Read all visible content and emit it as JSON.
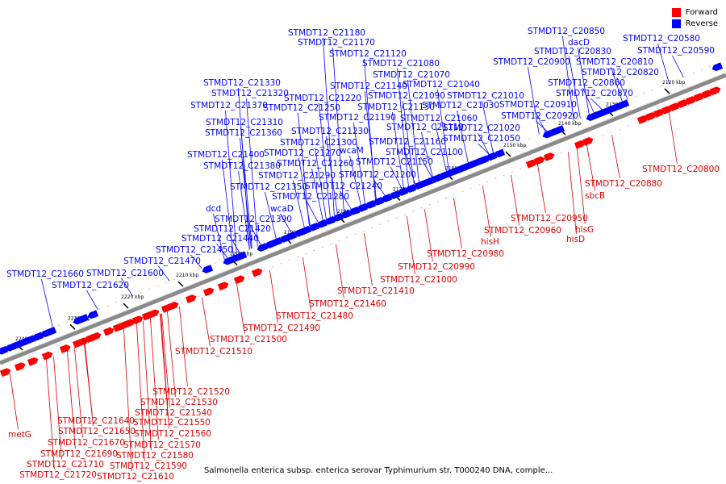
{
  "colors": {
    "forward": "#ff0000",
    "reverse": "#0000ff"
  },
  "legend": {
    "forward": "Forward",
    "reverse": "Reverse"
  },
  "caption": "Salmonella enterica subsp. enterica serovar Typhimurium str. T000240 DNA, comple...",
  "ticks": [
    "2120 kbp",
    "2130 kbp",
    "2140 kbp",
    "2150 kbp",
    "2160 kbp",
    "2170 kbp",
    "2180 kbp",
    "2190 kbp",
    "2200 kbp",
    "2210 kbp",
    "2220 kbp",
    "2230 kbp",
    "2240 kbp"
  ],
  "reverse_labels": [
    "STMDT12_C21180",
    "STMDT12_C21170",
    "STMDT12_C21120",
    "STMDT12_C21080",
    "STMDT12_C21070",
    "STMDT12_C21140",
    "STMDT12_C21040",
    "STMDT12_C21330",
    "STMDT12_C21320",
    "STMDT12_C21220",
    "STMDT12_C21090",
    "STMDT12_C21010",
    "STMDT12_C21370",
    "STMDT12_C21250",
    "STMDT12_C21130",
    "STMDT12_C21030",
    "STMDT12_C21190",
    "STMDT12_C21060",
    "STMDT12_C21310",
    "STMDT12_C21360",
    "STMDT12_C21230",
    "STMDT12_C21110",
    "STMDT12_C21020",
    "STMDT12_C21300",
    "STMDT12_C21160",
    "STMDT12_C21050",
    "STMDT12_C21400",
    "STMDT12_C21270",
    "wcaM",
    "STMDT12_C21100",
    "STMDT12_C21380",
    "STMDT12_C21260",
    "STMDT12_C21150",
    "STMDT12_C21290",
    "STMDT12_C21200",
    "STMDT12_C21350",
    "STMDT12_C21240",
    "STMDT12_C21280",
    "dcd",
    "wcaD",
    "STMDT12_C21390",
    "STMDT12_C21420",
    "STMDT12_C21440",
    "STMDT12_C21450",
    "STMDT12_C21470",
    "STMDT12_C21660",
    "STMDT12_C21600",
    "STMDT12_C21620",
    "STMDT12_C20850",
    "dacD",
    "STMDT12_C20830",
    "STMDT12_C20900",
    "STMDT12_C20810",
    "STMDT12_C20820",
    "STMDT12_C20860",
    "STMDT12_C20870",
    "STMDT12_C20910",
    "STMDT12_C20920",
    "STMDT12_C20580",
    "STMDT12_C20590"
  ],
  "forward_labels": [
    "STMDT12_C20800",
    "STMDT12_C20880",
    "sbcB",
    "STMDT12_C20950",
    "STMDT12_C20960",
    "hisG",
    "hisH",
    "hisD",
    "STMDT12_C20980",
    "STMDT12_C20990",
    "STMDT12_C21000",
    "STMDT12_C21410",
    "STMDT12_C21460",
    "STMDT12_C21480",
    "STMDT12_C21490",
    "STMDT12_C21500",
    "STMDT12_C21510",
    "STMDT12_C21520",
    "STMDT12_C21530",
    "STMDT12_C21540",
    "STMDT12_C21550",
    "STMDT12_C21560",
    "STMDT12_C21570",
    "STMDT12_C21580",
    "STMDT12_C21590",
    "STMDT12_C21610",
    "STMDT12_C21640",
    "STMDT12_C21650",
    "STMDT12_C21670",
    "STMDT12_C21690",
    "STMDT12_C21710",
    "STMDT12_C21720",
    "metG"
  ]
}
